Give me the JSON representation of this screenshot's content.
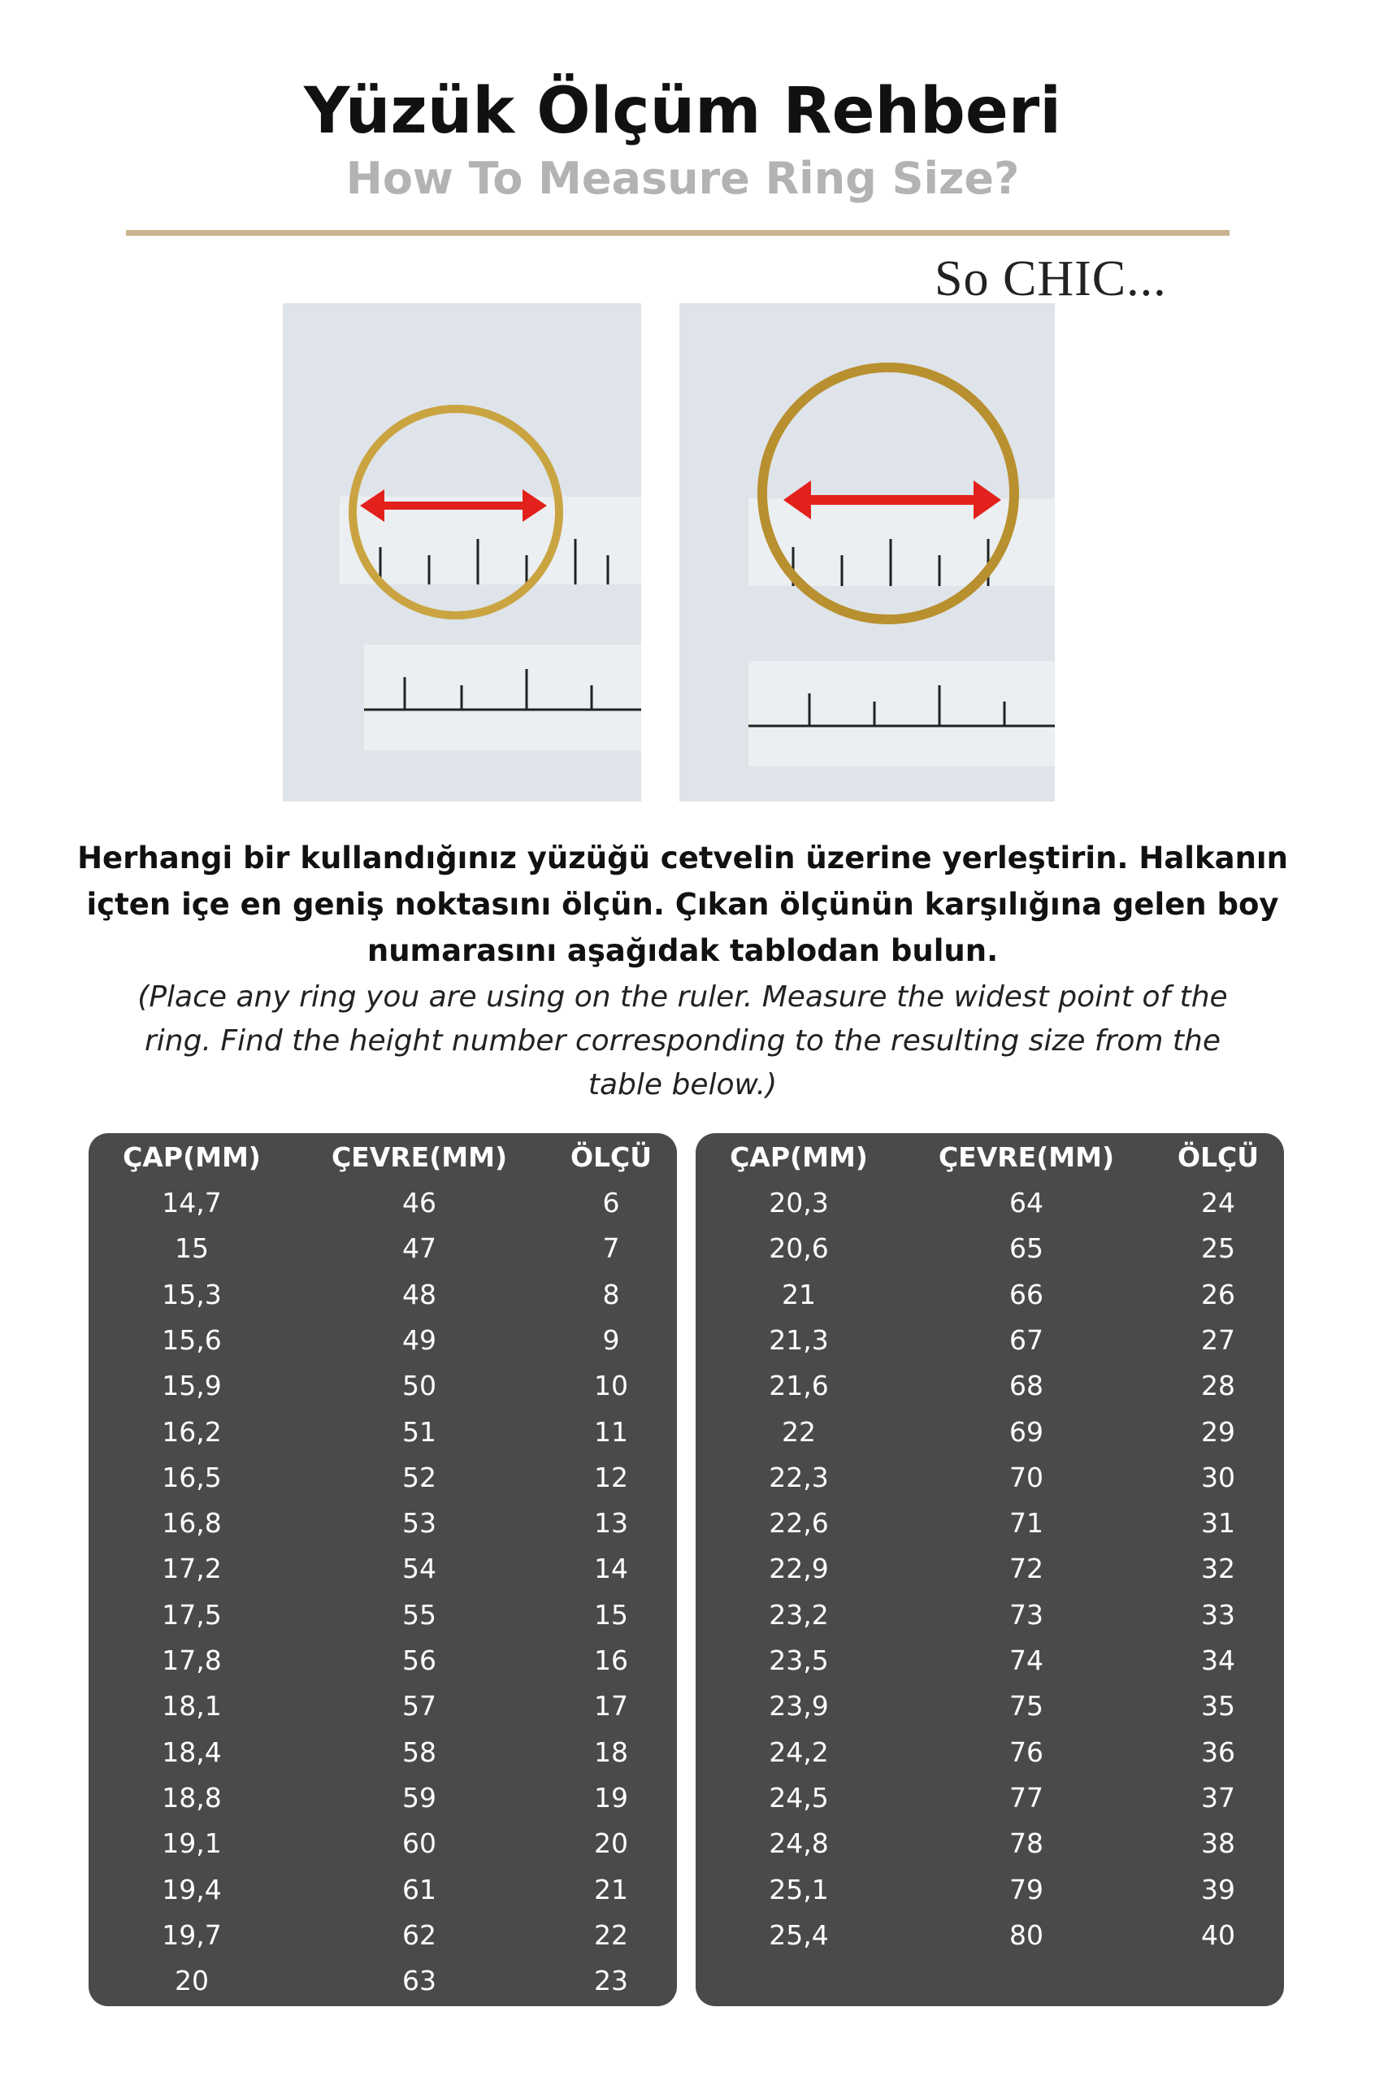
{
  "header": {
    "title": "Yüzük Ölçüm Rehberi",
    "subtitle": "How To Measure Ring Size?",
    "brand": "So CHIC..."
  },
  "instructions": {
    "turkish": [
      "Herhangi bir kullandığınız yüzüğü cetvelin üzerine yerleştirin. Halkanın",
      "içten içe en geniş noktasını ölçün. Çıkan ölçünün karşılığına gelen boy",
      "numarasını aşağıdak tablodan bulun."
    ],
    "english": [
      "(Place any ring you are using on the ruler. Measure the widest point of the",
      "ring. Find the height number corresponding to the resulting size from the",
      "table below.)"
    ]
  },
  "tables": [
    {
      "headers": [
        "ÇAP(MM)",
        "ÇEVRE(MM)",
        "ÖLÇÜ"
      ],
      "rows": [
        [
          "14,7",
          46,
          6
        ],
        [
          "15",
          47,
          7
        ],
        [
          "15,3",
          48,
          8
        ],
        [
          "15,6",
          49,
          9
        ],
        [
          "15,9",
          50,
          10
        ],
        [
          "16,2",
          51,
          11
        ],
        [
          "16,5",
          52,
          12
        ],
        [
          "16,8",
          53,
          13
        ],
        [
          "17,2",
          54,
          14
        ],
        [
          "17,5",
          55,
          15
        ],
        [
          "17,8",
          56,
          16
        ],
        [
          "18,1",
          57,
          17
        ],
        [
          "18,4",
          58,
          18
        ],
        [
          "18,8",
          59,
          19
        ],
        [
          "19,1",
          60,
          20
        ],
        [
          "19,4",
          61,
          21
        ],
        [
          "19,7",
          62,
          22
        ],
        [
          "20",
          63,
          23
        ]
      ]
    },
    {
      "headers": [
        "ÇAP(MM)",
        "ÇEVRE(MM)",
        "ÖLÇÜ"
      ],
      "rows": [
        [
          "20,3",
          64,
          24
        ],
        [
          "20,6",
          65,
          25
        ],
        [
          "21",
          66,
          26
        ],
        [
          "21,3",
          67,
          27
        ],
        [
          "21,6",
          68,
          28
        ],
        [
          "22",
          69,
          29
        ],
        [
          "22,3",
          70,
          30
        ],
        [
          "22,6",
          71,
          31
        ],
        [
          "22,9",
          72,
          32
        ],
        [
          "23,2",
          73,
          33
        ],
        [
          "23,5",
          74,
          34
        ],
        [
          "23,9",
          75,
          35
        ],
        [
          "24,2",
          76,
          36
        ],
        [
          "24,5",
          77,
          37
        ],
        [
          "24,8",
          78,
          38
        ],
        [
          "25,1",
          79,
          39
        ],
        [
          "25,4",
          80,
          40
        ]
      ]
    }
  ]
}
